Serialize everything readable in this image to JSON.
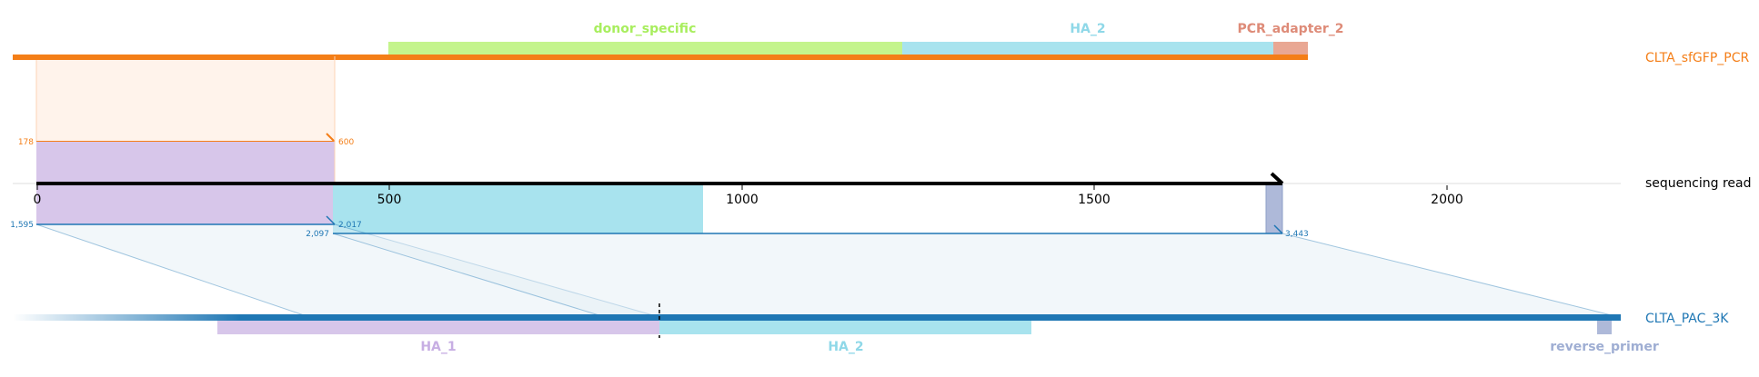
{
  "colors": {
    "target": "#f47e17",
    "read": "#000000",
    "donor": "#1f77b4",
    "donor_specific": "#c4f48c",
    "HA_1": "#d7c6ea",
    "HA_2": "#a8e3ee",
    "PCR_adapter_2": "#e9a793",
    "reverse_primer": "#aeb9d9",
    "target_fill": "#fff3eb",
    "donor_fill": "#e3eef5"
  },
  "tracks": {
    "target": "CLTA_sfGFP_PCR",
    "read": "sequencing read",
    "donor": "CLTA_PAC_3K"
  },
  "target_features": [
    {
      "name": "donor_specific",
      "label": "donor_specific"
    },
    {
      "name": "HA_2",
      "label": "HA_2"
    },
    {
      "name": "PCR_adapter_2",
      "label": "PCR_adapter_2"
    }
  ],
  "donor_features": [
    {
      "name": "HA_1",
      "label": "HA_1"
    },
    {
      "name": "HA_2",
      "label": "HA_2"
    },
    {
      "name": "reverse_primer",
      "label": "reverse_primer"
    }
  ],
  "axis": {
    "ticks": [
      "0",
      "500",
      "1000",
      "1500",
      "2000"
    ]
  },
  "alignment_coords": {
    "target_read_start": "178",
    "target_ref_end": "600",
    "donor_start_1": "1,595",
    "donor_end_1": "2,017",
    "donor_start_2": "2,097",
    "donor_end_2": "3,443"
  }
}
